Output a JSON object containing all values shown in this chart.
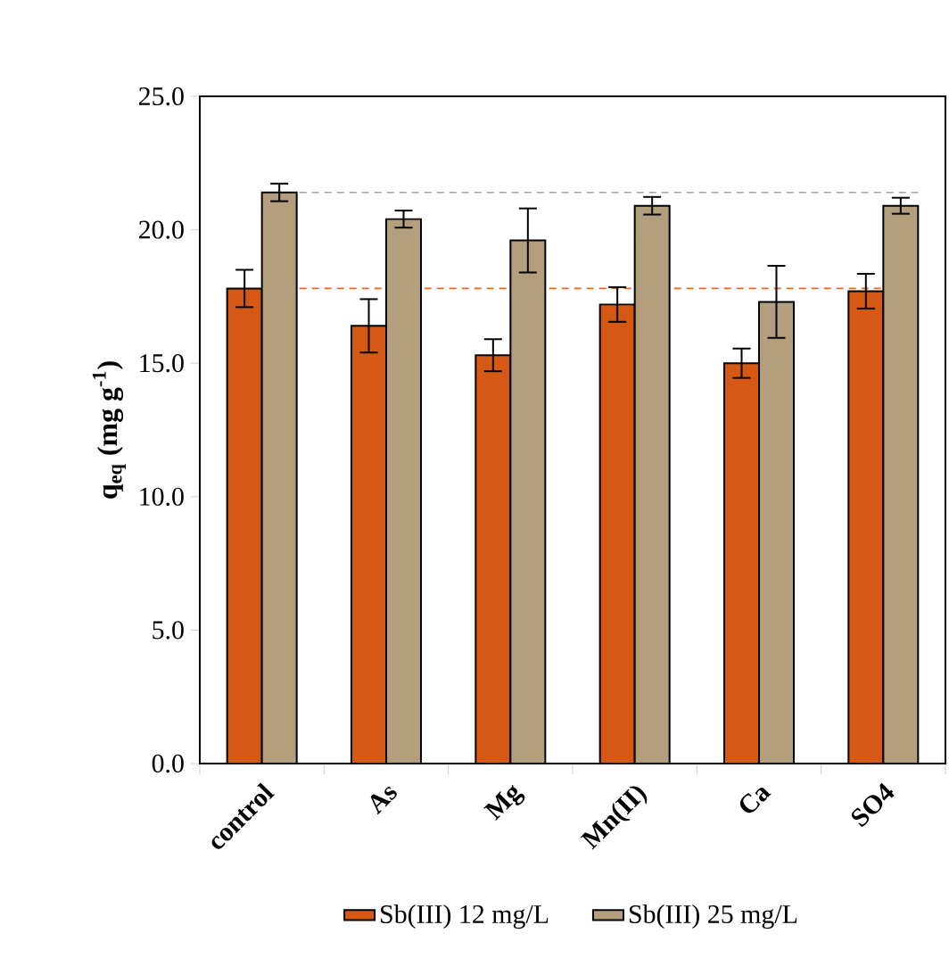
{
  "chart_data": {
    "type": "bar",
    "ylabel": "q$_{eq}$ (mg g$^{-1}$)",
    "categories": [
      "control",
      "As",
      "Mg",
      "Mn(II)",
      "Ca",
      "SO4"
    ],
    "series": [
      {
        "name": "Sb(III) 12 mg/L",
        "color": "#d65815",
        "values": [
          17.8,
          16.4,
          15.3,
          17.2,
          15.0,
          17.7
        ],
        "errors": [
          0.7,
          1.0,
          0.6,
          0.65,
          0.55,
          0.65
        ]
      },
      {
        "name": "Sb(III) 25 mg/L",
        "color": "#b39e7d",
        "values": [
          21.4,
          20.4,
          19.6,
          20.9,
          17.3,
          20.9
        ],
        "errors": [
          0.33,
          0.32,
          1.2,
          0.33,
          1.35,
          0.3
        ]
      }
    ],
    "ylim": [
      0,
      25
    ],
    "yticks": [
      {
        "value": 0,
        "label": "0.0"
      },
      {
        "value": 5,
        "label": "5.0"
      },
      {
        "value": 10,
        "label": "10.0"
      },
      {
        "value": 15,
        "label": "15.0"
      },
      {
        "value": 20,
        "label": "20.0"
      },
      {
        "value": 25,
        "label": "25.0"
      }
    ],
    "ref_lines": [
      {
        "axis": "y",
        "value": 17.8,
        "color": "#e8661e",
        "line_style": "dashed"
      },
      {
        "axis": "y",
        "value": 21.4,
        "color": "#a8a29a",
        "line_style": "dashed"
      }
    ],
    "grid": false,
    "legend": "bottom"
  }
}
